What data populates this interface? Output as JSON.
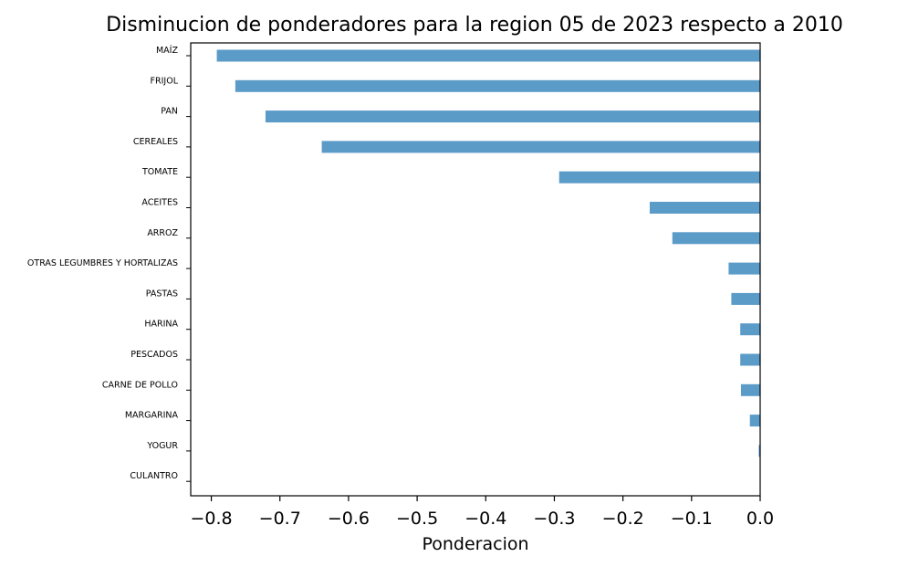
{
  "chart_data": {
    "type": "bar",
    "orientation": "horizontal",
    "title": "Disminucion de ponderadores para la region 05 de 2023 respecto a 2010",
    "xlabel": "Ponderacion",
    "ylabel": "",
    "xlim": [
      -0.83,
      0.0
    ],
    "xticks": [
      -0.8,
      -0.7,
      -0.6,
      -0.5,
      -0.4,
      -0.3,
      -0.2,
      -0.1,
      0.0
    ],
    "xtick_labels": [
      "−0.8",
      "−0.7",
      "−0.6",
      "−0.5",
      "−0.4",
      "−0.3",
      "−0.2",
      "−0.1",
      "0.0"
    ],
    "grid": false,
    "bar_color": "#5b9bc8",
    "categories": [
      "MAÍZ",
      "FRIJOL",
      "PAN",
      "CEREALES",
      "TOMATE",
      "ACEITES",
      "ARROZ",
      "OTRAS LEGUMBRES Y HORTALIZAS",
      "PASTAS",
      "HARINA",
      "PESCADOS",
      "CARNE DE POLLO",
      "MARGARINA",
      "YOGUR",
      "CULANTRO"
    ],
    "values": [
      -0.792,
      -0.765,
      -0.721,
      -0.639,
      -0.293,
      -0.161,
      -0.128,
      -0.046,
      -0.042,
      -0.029,
      -0.029,
      -0.028,
      -0.015,
      -0.002,
      0.0
    ]
  }
}
